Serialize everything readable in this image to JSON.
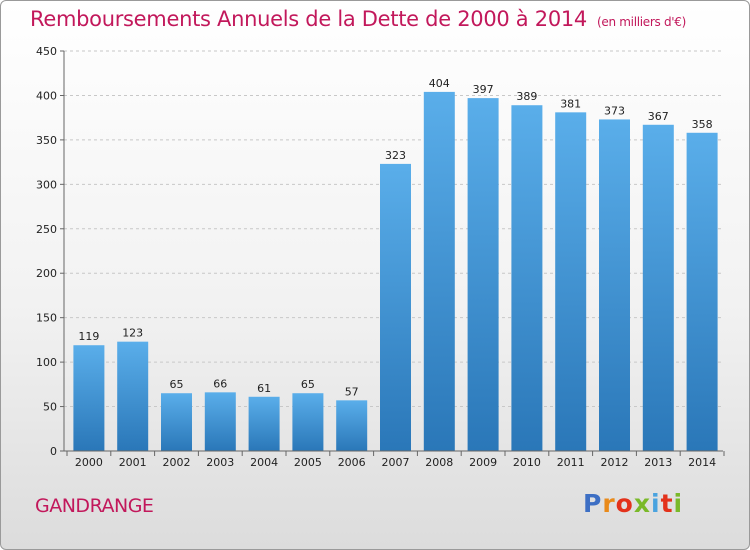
{
  "header": {
    "title": "Remboursements Annuels de la Dette de 2000 à 2014",
    "unit": "(en milliers d'€)"
  },
  "footer": {
    "commune": "GANDRANGE",
    "logo_text": "Proxiti"
  },
  "colors": {
    "title": "#c2185b",
    "bar_top": "#5aaeea",
    "bar_bottom": "#2a77b8"
  },
  "chart_data": {
    "type": "bar",
    "title": "Remboursements Annuels de la Dette de 2000 à 2014",
    "subtitle": "(en milliers d'€)",
    "xlabel": "",
    "ylabel": "",
    "categories": [
      "2000",
      "2001",
      "2002",
      "2003",
      "2004",
      "2005",
      "2006",
      "2007",
      "2008",
      "2009",
      "2010",
      "2011",
      "2012",
      "2013",
      "2014"
    ],
    "values": [
      119,
      123,
      65,
      66,
      61,
      65,
      57,
      323,
      404,
      397,
      389,
      381,
      373,
      367,
      358
    ],
    "ylim": [
      0,
      450
    ],
    "yticks": [
      0,
      50,
      100,
      150,
      200,
      250,
      300,
      350,
      400,
      450
    ],
    "grid": true
  }
}
